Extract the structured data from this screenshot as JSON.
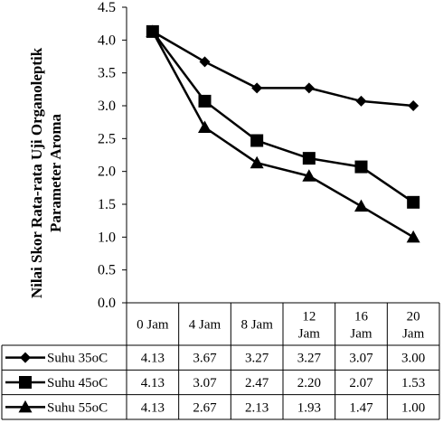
{
  "chart_data": {
    "type": "line",
    "ylabel_lines": [
      "Nilai Skor Rata-rata Uji Organoleptik",
      "Parameter Aroma"
    ],
    "ylim": [
      0.0,
      4.5
    ],
    "yticks": [
      "0.0",
      "0.5",
      "1.0",
      "1.5",
      "2.0",
      "2.5",
      "3.0",
      "3.5",
      "4.0",
      "4.5"
    ],
    "categories": [
      [
        "0 Jam"
      ],
      [
        "4 Jam"
      ],
      [
        "8 Jam"
      ],
      [
        "12",
        "Jam"
      ],
      [
        "16",
        "Jam"
      ],
      [
        "20",
        "Jam"
      ]
    ],
    "grid": false,
    "legend": "data-table",
    "series": [
      {
        "name": "Suhu 35oC",
        "marker": "diamond",
        "values": [
          4.13,
          3.67,
          3.27,
          3.27,
          3.07,
          3.0
        ],
        "labels": [
          "4.13",
          "3.67",
          "3.27",
          "3.27",
          "3.07",
          "3.00"
        ]
      },
      {
        "name": "Suhu 45oC",
        "marker": "square",
        "values": [
          4.13,
          3.07,
          2.47,
          2.2,
          2.07,
          1.53
        ],
        "labels": [
          "4.13",
          "3.07",
          "2.47",
          "2.20",
          "2.07",
          "1.53"
        ]
      },
      {
        "name": "Suhu 55oC",
        "marker": "triangle",
        "values": [
          4.13,
          2.67,
          2.13,
          1.93,
          1.47,
          1.0
        ],
        "labels": [
          "4.13",
          "2.67",
          "2.13",
          "1.93",
          "1.47",
          "1.00"
        ]
      }
    ],
    "colors": {
      "line": "#000000",
      "border": "#000000"
    }
  }
}
